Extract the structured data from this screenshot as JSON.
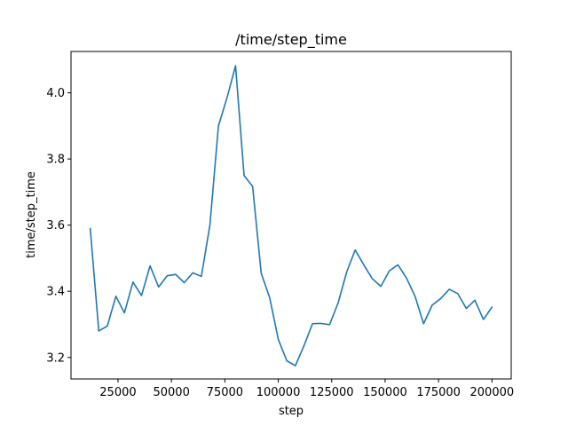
{
  "chart_data": {
    "type": "line",
    "title": "/time/step_time",
    "xlabel": "step",
    "ylabel": "time/step_time",
    "xlim": [
      3000,
      209000
    ],
    "ylim": [
      3.135,
      4.125
    ],
    "grid": false,
    "x_ticks": [
      {
        "value": 25000,
        "label": "25000"
      },
      {
        "value": 50000,
        "label": "50000"
      },
      {
        "value": 75000,
        "label": "75000"
      },
      {
        "value": 100000,
        "label": "100000"
      },
      {
        "value": 125000,
        "label": "125000"
      },
      {
        "value": 150000,
        "label": "150000"
      },
      {
        "value": 175000,
        "label": "175000"
      },
      {
        "value": 200000,
        "label": "200000"
      }
    ],
    "y_ticks": [
      {
        "value": 3.2,
        "label": "3.2"
      },
      {
        "value": 3.4,
        "label": "3.4"
      },
      {
        "value": 3.6,
        "label": "3.6"
      },
      {
        "value": 3.8,
        "label": "3.8"
      },
      {
        "value": 4.0,
        "label": "4.0"
      }
    ],
    "series": [
      {
        "color": "#1f77b4",
        "x": [
          12000,
          16000,
          20000,
          24000,
          28000,
          32000,
          36000,
          40000,
          44000,
          48000,
          52000,
          56000,
          60000,
          64000,
          68000,
          72000,
          76000,
          80000,
          84000,
          88000,
          92000,
          96000,
          100000,
          104000,
          108000,
          112000,
          116000,
          120000,
          124000,
          128000,
          132000,
          136000,
          140000,
          144000,
          148000,
          152000,
          156000,
          160000,
          164000,
          168000,
          172000,
          176000,
          180000,
          184000,
          188000,
          192000,
          196000,
          200000
        ],
        "y": [
          3.59,
          3.28,
          3.295,
          3.385,
          3.335,
          3.428,
          3.387,
          3.477,
          3.413,
          3.447,
          3.451,
          3.426,
          3.456,
          3.445,
          3.6,
          3.9,
          3.985,
          4.082,
          3.75,
          3.717,
          3.455,
          3.38,
          3.255,
          3.19,
          3.175,
          3.235,
          3.302,
          3.303,
          3.299,
          3.365,
          3.458,
          3.525,
          3.48,
          3.438,
          3.415,
          3.462,
          3.48,
          3.44,
          3.385,
          3.302,
          3.358,
          3.378,
          3.406,
          3.393,
          3.348,
          3.373,
          3.315,
          3.352
        ]
      }
    ]
  }
}
